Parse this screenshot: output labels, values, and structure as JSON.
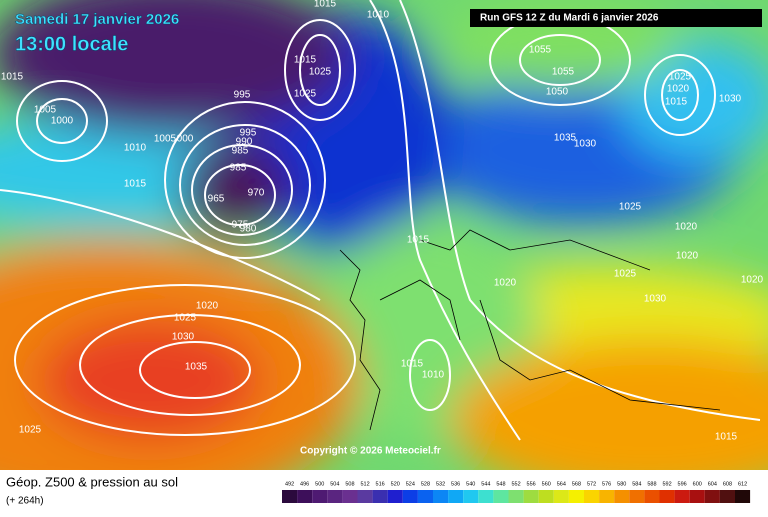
{
  "header": {
    "date": "Samedi 17 janvier 2026",
    "time": "13:00 locale",
    "run": "Run GFS 12 Z du Mardi 6 janvier 2026"
  },
  "map": {
    "copyright": "Copyright © 2026 Meteociel.fr",
    "pressure_labels": [
      "1015",
      "1010",
      "1015",
      "1005",
      "1000",
      "1010",
      "1015",
      "1005",
      "000",
      "995",
      "995",
      "990",
      "985",
      "985",
      "970",
      "965",
      "975",
      "980",
      "1015",
      "1025",
      "1025",
      "1055",
      "1055",
      "1050",
      "1035",
      "1030",
      "1025",
      "1020",
      "1015",
      "1030",
      "1025",
      "1020",
      "1020",
      "1025",
      "1030",
      "1020",
      "1020",
      "1015",
      "1020",
      "1025",
      "1030",
      "1035",
      "1025",
      "1015",
      "1010",
      "1015"
    ]
  },
  "footer": {
    "title": "Géop. Z500 & pression au sol",
    "lead": "(+ 264h)"
  },
  "colorbar": {
    "items": [
      {
        "label": "492",
        "color": "#2b0a3d"
      },
      {
        "label": "496",
        "color": "#3d0f5a"
      },
      {
        "label": "500",
        "color": "#4e1a72"
      },
      {
        "label": "504",
        "color": "#5a2580"
      },
      {
        "label": "508",
        "color": "#6a3090"
      },
      {
        "label": "512",
        "color": "#5a3aa0"
      },
      {
        "label": "516",
        "color": "#3a2fb0"
      },
      {
        "label": "520",
        "color": "#1f1fcf"
      },
      {
        "label": "524",
        "color": "#0c3ee6"
      },
      {
        "label": "528",
        "color": "#0a62f0"
      },
      {
        "label": "532",
        "color": "#0c86f5"
      },
      {
        "label": "536",
        "color": "#10a8f5"
      },
      {
        "label": "540",
        "color": "#20c8f0"
      },
      {
        "label": "544",
        "color": "#3de0d0"
      },
      {
        "label": "548",
        "color": "#5ee6a0"
      },
      {
        "label": "552",
        "color": "#7ee070"
      },
      {
        "label": "556",
        "color": "#9edc40"
      },
      {
        "label": "560",
        "color": "#bede20"
      },
      {
        "label": "564",
        "color": "#dce818"
      },
      {
        "label": "568",
        "color": "#f5f000"
      },
      {
        "label": "572",
        "color": "#fad400"
      },
      {
        "label": "576",
        "color": "#f8b400"
      },
      {
        "label": "580",
        "color": "#f59000"
      },
      {
        "label": "584",
        "color": "#f07000"
      },
      {
        "label": "588",
        "color": "#ea5000"
      },
      {
        "label": "592",
        "color": "#e03000"
      },
      {
        "label": "596",
        "color": "#cc1a10"
      },
      {
        "label": "600",
        "color": "#a81010"
      },
      {
        "label": "604",
        "color": "#801010"
      },
      {
        "label": "608",
        "color": "#501010"
      },
      {
        "label": "612",
        "color": "#200808"
      }
    ]
  }
}
